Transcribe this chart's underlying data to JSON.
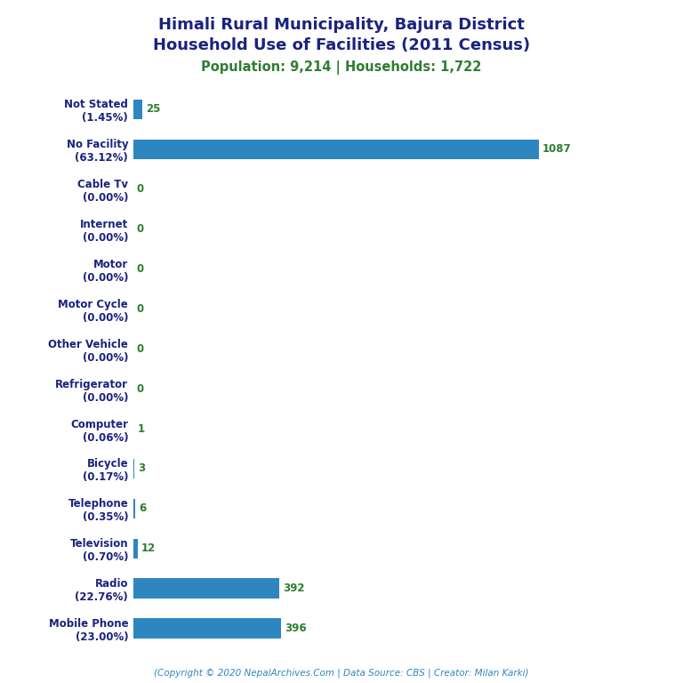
{
  "title_line1": "Himali Rural Municipality, Bajura District",
  "title_line2": "Household Use of Facilities (2011 Census)",
  "subtitle": "Population: 9,214 | Households: 1,722",
  "footer": "(Copyright © 2020 NepalArchives.Com | Data Source: CBS | Creator: Milan Karki)",
  "categories": [
    "Not Stated\n(1.45%)",
    "No Facility\n(63.12%)",
    "Cable Tv\n(0.00%)",
    "Internet\n(0.00%)",
    "Motor\n(0.00%)",
    "Motor Cycle\n(0.00%)",
    "Other Vehicle\n(0.00%)",
    "Refrigerator\n(0.00%)",
    "Computer\n(0.06%)",
    "Bicycle\n(0.17%)",
    "Telephone\n(0.35%)",
    "Television\n(0.70%)",
    "Radio\n(22.76%)",
    "Mobile Phone\n(23.00%)"
  ],
  "values": [
    25,
    1087,
    0,
    0,
    0,
    0,
    0,
    0,
    1,
    3,
    6,
    12,
    392,
    396
  ],
  "bar_color": "#2e86c1",
  "title_color": "#1a237e",
  "subtitle_color": "#2e7d32",
  "value_color": "#2e7d32",
  "footer_color": "#2e86c1",
  "background_color": "#ffffff",
  "title_fontsize": 13,
  "subtitle_fontsize": 10.5,
  "label_fontsize": 8.5,
  "value_fontsize": 8.5,
  "footer_fontsize": 7.5,
  "xlim": 1400,
  "bar_height": 0.5
}
